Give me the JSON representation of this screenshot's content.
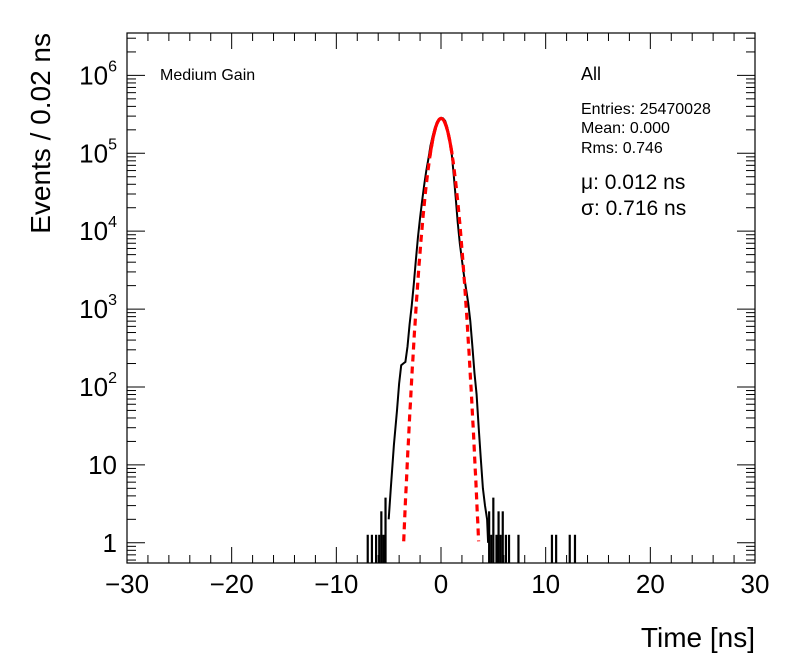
{
  "chart_data": {
    "type": "line",
    "xlabel": "Time [ns]",
    "ylabel": "Events / 0.02 ns",
    "xlim": [
      -30,
      30
    ],
    "ylim": [
      0.55,
      3500000
    ],
    "y_scale": "log",
    "x_ticks": [
      {
        "value": -30,
        "label": "−30"
      },
      {
        "value": -20,
        "label": "−20"
      },
      {
        "value": -10,
        "label": "−10"
      },
      {
        "value": 0,
        "label": "0"
      },
      {
        "value": 10,
        "label": "10"
      },
      {
        "value": 20,
        "label": "20"
      },
      {
        "value": 30,
        "label": "30"
      }
    ],
    "y_ticks": [
      {
        "value": 1,
        "base": "1",
        "exp": ""
      },
      {
        "value": 10,
        "base": "10",
        "exp": ""
      },
      {
        "value": 100,
        "base": "10",
        "exp": "2"
      },
      {
        "value": 1000,
        "base": "10",
        "exp": "3"
      },
      {
        "value": 10000,
        "base": "10",
        "exp": "4"
      },
      {
        "value": 100000,
        "base": "10",
        "exp": "5"
      },
      {
        "value": 1000000,
        "base": "10",
        "exp": "6"
      }
    ],
    "annotation": "Medium Gain",
    "legend": {
      "title": "All",
      "entries": "Entries: 25470028",
      "mean": "Mean: 0.000",
      "rms": "Rms: 0.746"
    },
    "fit": {
      "mu_label": "μ: 0.012 ns",
      "sigma_label": "σ: 0.716 ns",
      "mean": 0.012,
      "sigma": 0.716,
      "amplitude": 280000,
      "color": "#ff0000"
    },
    "series": [
      {
        "color": "#000000",
        "x": [
          -5.0,
          -4.8,
          -4.5,
          -4.2,
          -4.0,
          -3.8,
          -3.6,
          -3.4,
          -3.2,
          -3.0,
          -2.8,
          -2.6,
          -2.4,
          -2.2,
          -2.0,
          -1.8,
          -1.6,
          -1.4,
          -1.2,
          -1.0,
          -0.8,
          -0.6,
          -0.4,
          -0.2,
          0.0,
          0.2,
          0.4,
          0.6,
          0.8,
          1.0,
          1.2,
          1.4,
          1.6,
          1.8,
          2.0,
          2.2,
          2.4,
          2.6,
          2.8,
          3.0,
          3.2,
          3.4,
          3.6,
          3.8,
          4.0,
          4.2,
          4.4,
          4.5
        ],
        "values": [
          2,
          5,
          18,
          50,
          110,
          190,
          200,
          210,
          330,
          640,
          1100,
          2100,
          4300,
          8500,
          15000,
          25000,
          40000,
          60000,
          85000,
          125000,
          165000,
          210000,
          250000,
          275000,
          285000,
          280000,
          260000,
          215000,
          160000,
          105000,
          55000,
          27000,
          13000,
          7000,
          4300,
          2700,
          1800,
          1200,
          700,
          330,
          150,
          80,
          30,
          12,
          5,
          3,
          2,
          1
        ]
      }
    ],
    "outlier_bins": [
      {
        "x": -7.0,
        "y": 1
      },
      {
        "x": -6.6,
        "y": 1
      },
      {
        "x": -6.2,
        "y": 1
      },
      {
        "x": -5.9,
        "y": 1
      },
      {
        "x": -5.7,
        "y": 2
      },
      {
        "x": -5.5,
        "y": 1
      },
      {
        "x": -5.3,
        "y": 3
      },
      {
        "x": 4.6,
        "y": 2
      },
      {
        "x": 4.8,
        "y": 1
      },
      {
        "x": 5.0,
        "y": 3
      },
      {
        "x": 5.3,
        "y": 1
      },
      {
        "x": 5.5,
        "y": 2
      },
      {
        "x": 5.7,
        "y": 1
      },
      {
        "x": 5.9,
        "y": 2
      },
      {
        "x": 6.2,
        "y": 1
      },
      {
        "x": 6.5,
        "y": 1
      },
      {
        "x": 7.4,
        "y": 1
      },
      {
        "x": 10.6,
        "y": 1
      },
      {
        "x": 11.0,
        "y": 1
      },
      {
        "x": 12.3,
        "y": 1
      },
      {
        "x": 12.8,
        "y": 1
      }
    ]
  }
}
